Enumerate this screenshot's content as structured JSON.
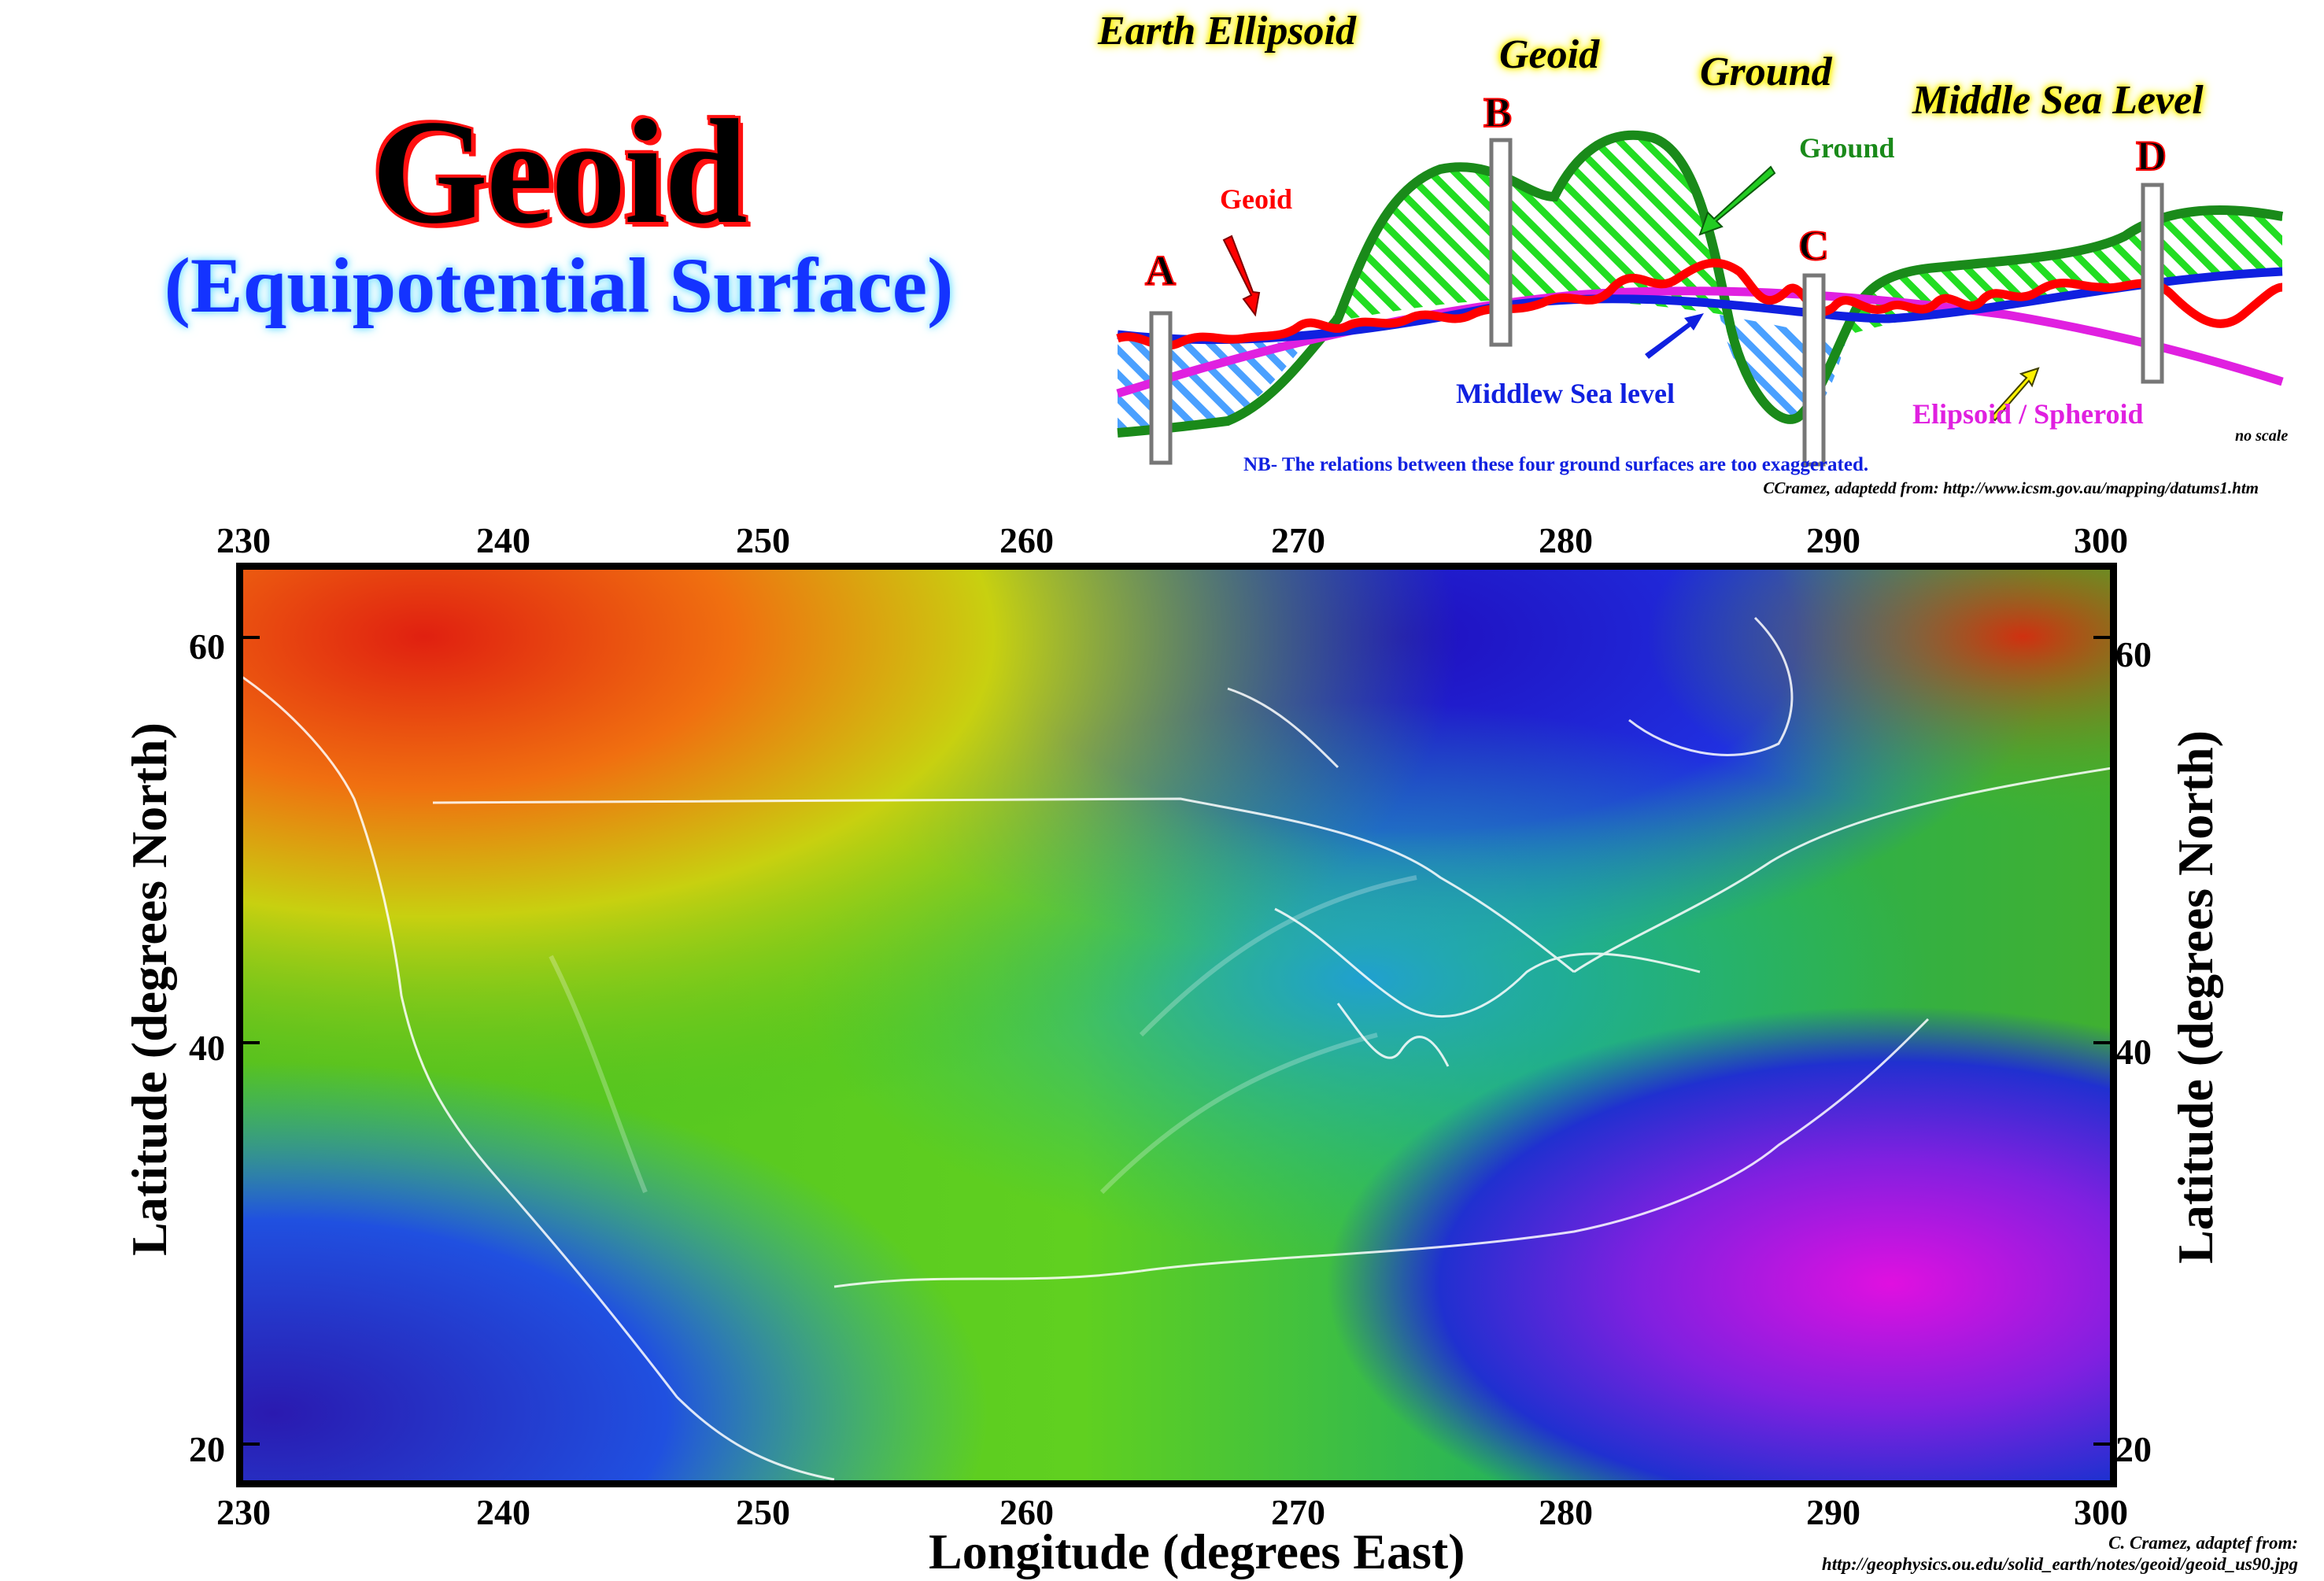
{
  "title": "Geoid",
  "subtitle": "(Equipotential Surface)",
  "diagram": {
    "top_labels": {
      "earth_ellipsoid": "Earth Ellipsoid",
      "geoid": "Geoid",
      "ground": "Ground",
      "middle_sea_level": "Middle Sea Level"
    },
    "points": [
      "A",
      "B",
      "C",
      "D"
    ],
    "callouts": {
      "geoid": "Geoid",
      "ground": "Ground",
      "msl": "Middlew Sea level",
      "ellipsoid": "Elipsoid / Spheroid",
      "no_scale": "no scale"
    },
    "note": "NB- The relations between these four ground surfaces are too exaggerated.",
    "credit": "CCramez, adaptedd from:  http://www.icsm.gov.au/mapping/datums1.htm",
    "colors": {
      "geoid": "#ff0000",
      "ground": "#1a8a1a",
      "msl": "#1020e0",
      "ellipsoid": "#e020e0",
      "hatch_land": "#22dd22",
      "hatch_sea": "#4aa0ff"
    }
  },
  "map": {
    "x_ticks": [
      "230",
      "240",
      "250",
      "260",
      "270",
      "280",
      "290",
      "300"
    ],
    "y_ticks": [
      "60",
      "40",
      "20"
    ],
    "x_label": "Longitude (degrees East)",
    "y_label": "Latitude (degrees North)",
    "credit_line1": "C. Cramez, adaptef from:",
    "credit_line2": "http://geophysics.ou.edu/solid_earth/notes/geoid/geoid_us90.jpg"
  }
}
